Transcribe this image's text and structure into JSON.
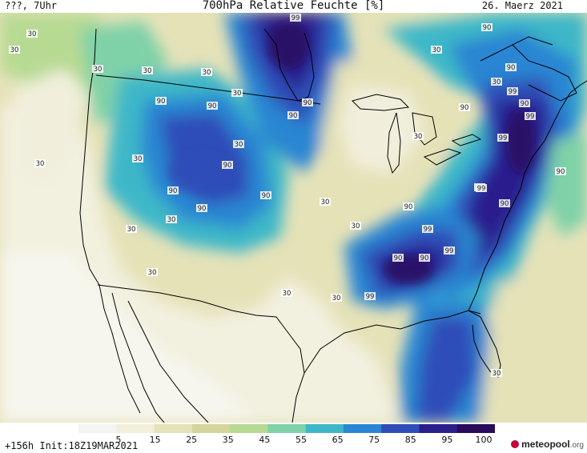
{
  "header": {
    "left": "???, 7Uhr",
    "title": "700hPa Relative Feuchte [%]",
    "date": "26. Maerz 2021"
  },
  "footer": {
    "run": "+156h  Init:18Z19MAR2021",
    "logo": "meteopool",
    "logo_tld": ".org"
  },
  "legend": {
    "ticks": [
      "5",
      "15",
      "25",
      "35",
      "45",
      "55",
      "65",
      "75",
      "85",
      "95",
      "100"
    ],
    "colors": [
      "#f4f4f4",
      "#f1efdc",
      "#e5e2b8",
      "#d3d59a",
      "#b7da93",
      "#7fd1a8",
      "#3db7c8",
      "#2a86d2",
      "#2f4db8",
      "#2a1f8c",
      "#2a0a5a"
    ]
  },
  "map": {
    "contour_labels": [
      "30",
      "30",
      "30",
      "30",
      "30",
      "30",
      "30",
      "30",
      "30",
      "30",
      "30",
      "30",
      "30",
      "30",
      "30",
      "30",
      "30",
      "30",
      "30",
      "30",
      "90",
      "90",
      "90",
      "90",
      "90",
      "90",
      "90",
      "90",
      "90",
      "90",
      "90",
      "90",
      "90",
      "90",
      "90",
      "90",
      "90",
      "90",
      "99",
      "99",
      "99",
      "99",
      "99",
      "99",
      "99",
      "99"
    ]
  }
}
